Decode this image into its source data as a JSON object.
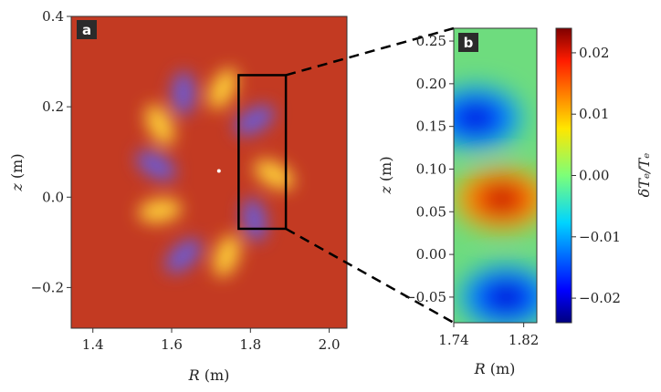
{
  "chart_data": [
    {
      "panel_label": "a",
      "type": "heatmap",
      "xlabel": {
        "var": "R",
        "unit": " (m)"
      },
      "ylabel": {
        "var": "z",
        "unit": " (m)"
      },
      "xlim": [
        1.345,
        2.045
      ],
      "ylim": [
        -0.29,
        0.4
      ],
      "xticks": [
        1.4,
        1.6,
        1.8,
        2.0
      ],
      "xtick_labels": [
        "1.4",
        "1.6",
        "1.8",
        "2.0"
      ],
      "yticks": [
        -0.2,
        0.0,
        0.2,
        0.4
      ],
      "ytick_labels": [
        "−0.2",
        "0.0",
        "0.2",
        "0.4"
      ],
      "background_value": 0.012,
      "magnetic_axis": [
        1.72,
        0.058
      ],
      "blobs": [
        {
          "R": 1.81,
          "z": 0.17,
          "value": -0.022
        },
        {
          "R": 1.86,
          "z": 0.05,
          "value": 0.021
        },
        {
          "R": 1.81,
          "z": -0.05,
          "value": -0.022
        },
        {
          "R": 1.74,
          "z": -0.13,
          "value": 0.021
        },
        {
          "R": 1.63,
          "z": -0.13,
          "value": -0.022
        },
        {
          "R": 1.57,
          "z": -0.03,
          "value": 0.021
        },
        {
          "R": 1.56,
          "z": 0.07,
          "value": -0.022
        },
        {
          "R": 1.57,
          "z": 0.16,
          "value": 0.021
        },
        {
          "R": 1.63,
          "z": 0.23,
          "value": -0.022
        },
        {
          "R": 1.73,
          "z": 0.24,
          "value": 0.021
        }
      ],
      "zoom_box": {
        "R": [
          1.77,
          1.89
        ],
        "z": [
          -0.07,
          0.27
        ]
      }
    },
    {
      "panel_label": "b",
      "type": "heatmap",
      "xlabel": {
        "var": "R",
        "unit": " (m)"
      },
      "ylabel": {
        "var": "z",
        "unit": " (m)"
      },
      "xlim": [
        1.74,
        1.835
      ],
      "ylim": [
        -0.08,
        0.265
      ],
      "xticks": [
        1.74,
        1.82
      ],
      "xtick_labels": [
        "1.74",
        "1.82"
      ],
      "yticks": [
        -0.05,
        0.0,
        0.05,
        0.1,
        0.15,
        0.2,
        0.25
      ],
      "ytick_labels": [
        "−0.05",
        "0.00",
        "0.05",
        "0.10",
        "0.15",
        "0.20",
        "0.25"
      ],
      "colorbar": {
        "label": "δTₑ/Tₑ",
        "range": [
          -0.024,
          0.024
        ],
        "ticks": [
          -0.02,
          -0.01,
          0.0,
          0.01,
          0.02
        ],
        "tick_labels": [
          "−0.02",
          "−0.01",
          "0.00",
          "0.01",
          "0.02"
        ],
        "colormap": "jet"
      },
      "blobs": [
        {
          "R": 1.765,
          "z": 0.16,
          "value": -0.022
        },
        {
          "R": 1.795,
          "z": 0.065,
          "value": 0.024
        },
        {
          "R": 1.8,
          "z": -0.05,
          "value": -0.023
        }
      ]
    }
  ]
}
